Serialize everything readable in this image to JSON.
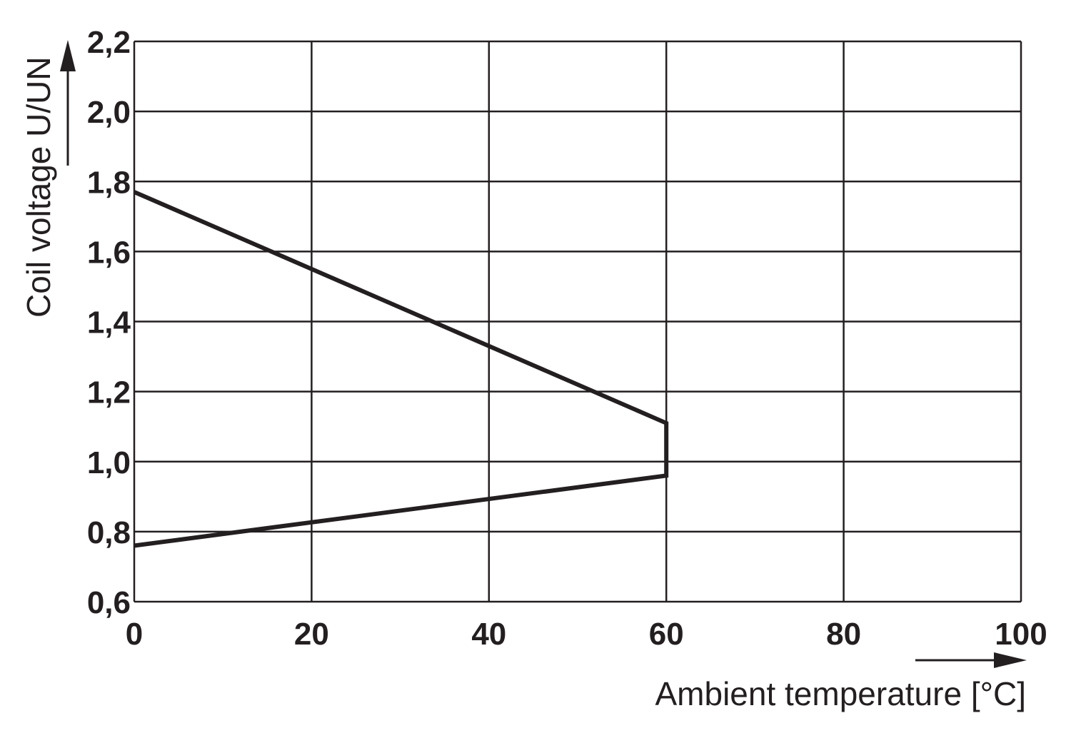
{
  "chart_data": {
    "type": "line",
    "title": "",
    "xlabel": "Ambient temperature [°C]",
    "ylabel": "Coil voltage U/UN",
    "xlim": [
      0,
      100
    ],
    "ylim": [
      0.6,
      2.2
    ],
    "x_ticks": [
      0,
      20,
      40,
      60,
      80,
      100
    ],
    "x_tick_labels": [
      "0",
      "20",
      "40",
      "60",
      "80",
      "100"
    ],
    "y_ticks": [
      0.6,
      0.8,
      1.0,
      1.2,
      1.4,
      1.6,
      1.8,
      2.0,
      2.2
    ],
    "y_tick_labels": [
      "0,6",
      "0,8",
      "1,0",
      "1,2",
      "1,4",
      "1,6",
      "1,8",
      "2,0",
      "2,2"
    ],
    "grid": true,
    "legend": "none",
    "line_color": "#231f20",
    "grid_color": "#231f20",
    "series": [
      {
        "points": [
          {
            "x": 0,
            "y": 0.76
          },
          {
            "x": 60,
            "y": 0.96
          },
          {
            "x": 60,
            "y": 1.11
          },
          {
            "x": 0,
            "y": 1.77
          }
        ]
      }
    ]
  }
}
